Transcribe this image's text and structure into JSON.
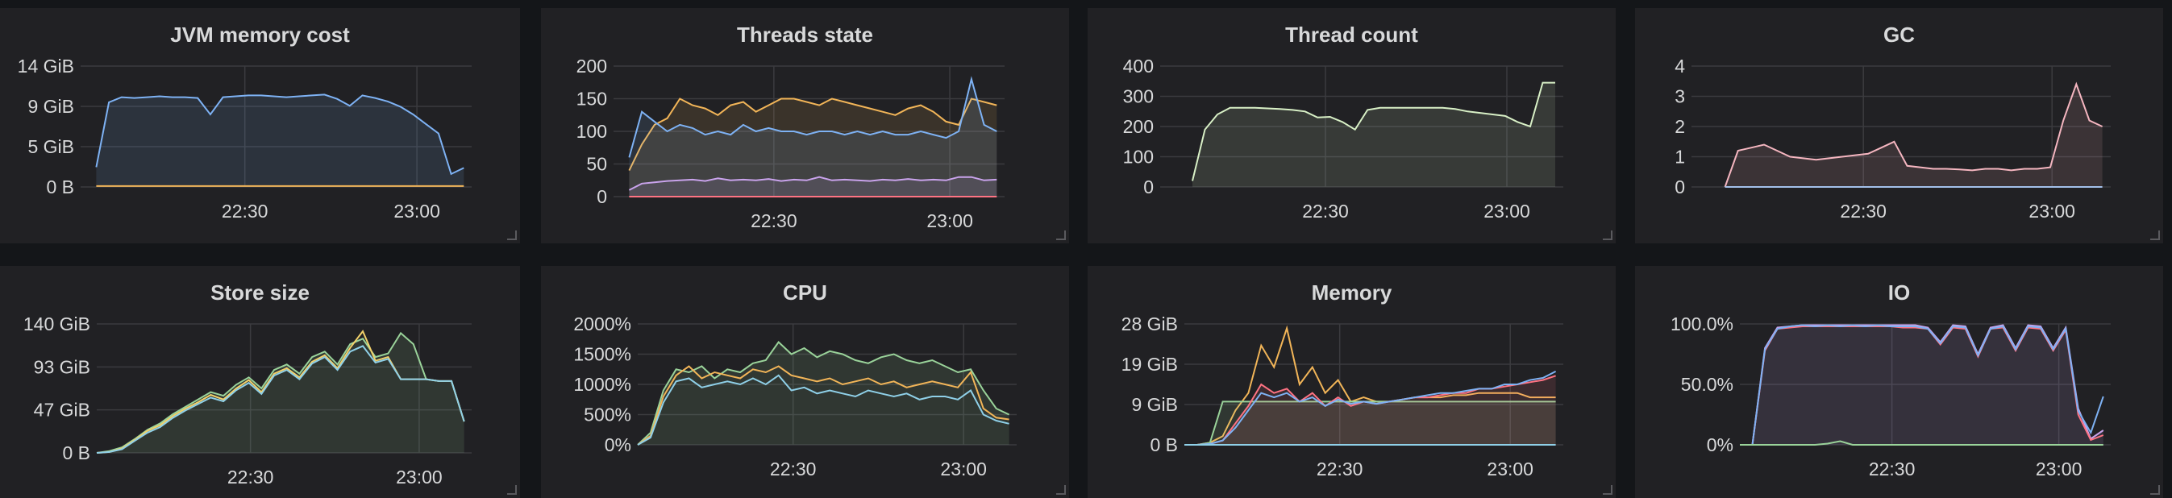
{
  "panels": [
    {
      "title": "JVM memory cost",
      "chart_data": {
        "type": "line",
        "y_ticks": [
          "14 GiB",
          "9 GiB",
          "5 GiB",
          "0 B"
        ],
        "x_ticks": [
          "22:30",
          "23:00"
        ],
        "series": [
          {
            "color": "#7eb2f4",
            "fill": "#7eb2f4",
            "values": [
              2.3,
              9.8,
              10.4,
              10.3,
              10.4,
              10.5,
              10.4,
              10.4,
              10.3,
              8.4,
              10.4,
              10.5,
              10.6,
              10.6,
              10.5,
              10.4,
              10.5,
              10.6,
              10.7,
              10.2,
              9.4,
              10.6,
              10.3,
              9.9,
              9.3,
              8.4,
              7.3,
              6.2,
              1.5,
              2.2
            ]
          },
          {
            "color": "#f2b558",
            "fill": null,
            "values": [
              0.1,
              0.1,
              0.1,
              0.1,
              0.1,
              0.1,
              0.1,
              0.1,
              0.1,
              0.1,
              0.1,
              0.1,
              0.1,
              0.1,
              0.1,
              0.1,
              0.1,
              0.1,
              0.1,
              0.1,
              0.1,
              0.1,
              0.1,
              0.1,
              0.1,
              0.1,
              0.1,
              0.1,
              0.1,
              0.1
            ]
          }
        ]
      }
    },
    {
      "title": "Threads state",
      "chart_data": {
        "type": "line",
        "y_ticks": [
          "200",
          "150",
          "100",
          "50",
          "0"
        ],
        "x_ticks": [
          "22:30",
          "23:00"
        ],
        "series": [
          {
            "color": "#f2b558",
            "fill": "#f2b558",
            "values": [
              40,
              80,
              110,
              120,
              150,
              140,
              135,
              125,
              140,
              145,
              130,
              140,
              150,
              150,
              145,
              140,
              150,
              145,
              140,
              135,
              130,
              125,
              135,
              140,
              130,
              115,
              110,
              150,
              145,
              140
            ]
          },
          {
            "color": "#7eb2f4",
            "fill": "#7eb2f4",
            "values": [
              60,
              130,
              115,
              100,
              110,
              105,
              95,
              100,
              95,
              110,
              100,
              105,
              100,
              100,
              95,
              100,
              100,
              95,
              100,
              95,
              100,
              95,
              95,
              100,
              95,
              90,
              100,
              180,
              110,
              100
            ]
          },
          {
            "color": "#c9a3ec",
            "fill": "#c9a3ec",
            "values": [
              10,
              20,
              22,
              24,
              25,
              26,
              24,
              28,
              25,
              26,
              25,
              27,
              24,
              26,
              25,
              30,
              25,
              26,
              25,
              24,
              26,
              25,
              27,
              25,
              26,
              25,
              30,
              30,
              25,
              26
            ]
          },
          {
            "color": "#ff7383",
            "fill": null,
            "values": [
              0,
              0,
              0,
              0,
              0,
              0,
              0,
              0,
              0,
              0,
              0,
              0,
              0,
              0,
              0,
              0,
              0,
              0,
              0,
              0,
              0,
              0,
              0,
              0,
              0,
              0,
              0,
              0,
              0,
              0
            ]
          }
        ]
      }
    },
    {
      "title": "Thread count",
      "chart_data": {
        "type": "line",
        "y_ticks": [
          "400",
          "300",
          "200",
          "100",
          "0"
        ],
        "x_ticks": [
          "22:30",
          "23:00"
        ],
        "series": [
          {
            "color": "#d8f0c6",
            "fill": "#d8f0c6",
            "values": [
              20,
              190,
              240,
              262,
              262,
              262,
              260,
              258,
              255,
              250,
              230,
              232,
              215,
              190,
              255,
              262,
              262,
              262,
              262,
              262,
              262,
              258,
              250,
              245,
              240,
              235,
              215,
              200,
              345,
              345
            ]
          }
        ]
      }
    },
    {
      "title": "GC",
      "chart_data": {
        "type": "line",
        "y_ticks": [
          "4",
          "3",
          "2",
          "1",
          "0"
        ],
        "x_ticks": [
          "22:30",
          "23:00"
        ],
        "series": [
          {
            "color": "#f5b6c0",
            "fill": "#f5b6c0",
            "values": [
              0,
              1.2,
              1.3,
              1.4,
              1.2,
              1.0,
              0.95,
              0.9,
              0.95,
              1.0,
              1.05,
              1.1,
              1.3,
              1.5,
              0.7,
              0.65,
              0.6,
              0.6,
              0.58,
              0.55,
              0.6,
              0.6,
              0.55,
              0.6,
              0.6,
              0.65,
              2.2,
              3.4,
              2.2,
              2.0
            ]
          },
          {
            "color": "#a3c0ea",
            "fill": null,
            "values": [
              0,
              0,
              0,
              0,
              0,
              0,
              0,
              0,
              0,
              0,
              0,
              0,
              0,
              0,
              0,
              0,
              0,
              0,
              0,
              0,
              0,
              0,
              0,
              0,
              0,
              0,
              0,
              0,
              0,
              0
            ]
          }
        ]
      }
    },
    {
      "title": "Store size",
      "chart_data": {
        "type": "line",
        "y_ticks": [
          "140 GiB",
          "93 GiB",
          "47 GiB",
          "0 B"
        ],
        "x_ticks": [
          "22:30",
          "23:00"
        ],
        "series": [
          {
            "color": "#9ad39a",
            "fill": "#9ad39a",
            "values": [
              0,
              2,
              6,
              15,
              25,
              32,
              42,
              50,
              58,
              66,
              62,
              74,
              82,
              70,
              90,
              96,
              86,
              104,
              110,
              96,
              118,
              124,
              104,
              108,
              130,
              118,
              80,
              78,
              78,
              34
            ]
          },
          {
            "color": "#f2d16b",
            "fill": null,
            "values": [
              0,
              1,
              5,
              14,
              24,
              30,
              40,
              48,
              55,
              63,
              58,
              70,
              79,
              66,
              86,
              92,
              82,
              99,
              106,
              92,
              114,
              132,
              100,
              104,
              80,
              80,
              80,
              78,
              78,
              34
            ]
          },
          {
            "color": "#8fd0e8",
            "fill": null,
            "values": [
              0,
              1,
              4,
              13,
              22,
              28,
              38,
              46,
              53,
              60,
              56,
              68,
              76,
              64,
              84,
              90,
              80,
              97,
              104,
              90,
              110,
              116,
              98,
              102,
              80,
              80,
              80,
              78,
              78,
              34
            ]
          }
        ]
      }
    },
    {
      "title": "CPU",
      "chart_data": {
        "type": "line",
        "y_ticks": [
          "2000%",
          "1500%",
          "1000%",
          "500%",
          "0%"
        ],
        "x_ticks": [
          "22:30",
          "23:00"
        ],
        "series": [
          {
            "color": "#9ad39a",
            "fill": "#9ad39a",
            "values": [
              0,
              200,
              900,
              1250,
              1200,
              1300,
              1100,
              1250,
              1200,
              1350,
              1400,
              1700,
              1500,
              1600,
              1450,
              1550,
              1500,
              1400,
              1350,
              1450,
              1500,
              1400,
              1350,
              1400,
              1300,
              1200,
              1250,
              900,
              600,
              500
            ]
          },
          {
            "color": "#f2b558",
            "fill": null,
            "values": [
              0,
              150,
              800,
              1150,
              1300,
              1100,
              1200,
              1150,
              1100,
              1250,
              1200,
              1300,
              1150,
              1100,
              1050,
              1100,
              1000,
              1050,
              1100,
              1000,
              1050,
              950,
              1000,
              1050,
              1000,
              950,
              1200,
              600,
              450,
              420
            ]
          },
          {
            "color": "#8fd0e8",
            "fill": null,
            "values": [
              0,
              120,
              700,
              1050,
              1100,
              950,
              1000,
              1050,
              1000,
              1100,
              1000,
              1150,
              900,
              950,
              850,
              900,
              850,
              800,
              900,
              850,
              800,
              850,
              750,
              800,
              800,
              750,
              900,
              500,
              400,
              350
            ]
          }
        ]
      }
    },
    {
      "title": "Memory",
      "chart_data": {
        "type": "line",
        "y_ticks": [
          "28 GiB",
          "19 GiB",
          "9 GiB",
          "0 B"
        ],
        "x_ticks": [
          "22:30",
          "23:00"
        ],
        "series": [
          {
            "color": "#f2b558",
            "fill": null,
            "values": [
              0,
              0,
              0.5,
              2,
              8,
              12,
              23,
              18,
              27,
              14,
              18,
              12,
              15,
              10,
              11,
              10,
              10,
              10.5,
              11,
              11,
              11,
              11.5,
              11.5,
              12,
              12,
              12,
              12,
              11,
              11,
              11
            ]
          },
          {
            "color": "#9ad39a",
            "fill": "#9ad39a",
            "values": [
              0,
              0,
              0.5,
              10,
              10,
              10,
              10,
              10,
              10,
              10,
              10,
              10,
              10,
              10,
              10,
              10,
              10,
              10,
              10,
              10,
              10,
              10,
              10,
              10,
              10,
              10,
              10,
              10,
              10,
              10
            ]
          },
          {
            "color": "#ff7383",
            "fill": "#ff7383",
            "values": [
              0,
              0,
              0.2,
              1,
              5,
              9,
              14,
              12,
              13,
              10,
              12,
              9,
              11,
              9,
              10,
              9.5,
              10,
              10.5,
              11,
              11,
              11.5,
              12,
              12,
              13,
              13,
              13.5,
              14,
              14.5,
              15,
              16
            ]
          },
          {
            "color": "#7eb2f4",
            "fill": null,
            "values": [
              0,
              0,
              0.2,
              1,
              4,
              8,
              12,
              11,
              12,
              10,
              11,
              9,
              10.5,
              9.5,
              10,
              9.5,
              10,
              10.5,
              11,
              11.5,
              12,
              12,
              12.5,
              13,
              13,
              14,
              14,
              15,
              15.5,
              17
            ]
          },
          {
            "color": "#8fd0e8",
            "fill": null,
            "values": [
              0,
              0,
              0,
              0,
              0,
              0,
              0,
              0,
              0,
              0,
              0,
              0,
              0,
              0,
              0,
              0,
              0,
              0,
              0,
              0,
              0,
              0,
              0,
              0,
              0,
              0,
              0,
              0,
              0,
              0
            ]
          }
        ]
      }
    },
    {
      "title": "IO",
      "chart_data": {
        "type": "line",
        "y_ticks": [
          "100.0%",
          "50.0%",
          "0%"
        ],
        "x_ticks": [
          "22:30",
          "23:00"
        ],
        "series": [
          {
            "color": "#c9a3ec",
            "fill": "#c9a3ec",
            "values": [
              0,
              0,
              80,
              97,
              98,
              99,
              99,
              99,
              99,
              99,
              99,
              99,
              99,
              99,
              99,
              97,
              85,
              99,
              98,
              75,
              97,
              99,
              80,
              99,
              98,
              80,
              97,
              30,
              5,
              12
            ]
          },
          {
            "color": "#ff7383",
            "fill": null,
            "values": [
              0,
              0,
              78,
              96,
              97,
              98,
              98,
              98,
              98,
              98,
              98,
              98,
              98,
              97,
              97,
              96,
              83,
              97,
              96,
              73,
              96,
              97,
              78,
              97,
              96,
              78,
              95,
              25,
              4,
              8
            ]
          },
          {
            "color": "#7eb2f4",
            "fill": null,
            "values": [
              0,
              0,
              79,
              96,
              98,
              99,
              98,
              99,
              98,
              99,
              98,
              99,
              98,
              98,
              98,
              96,
              84,
              98,
              97,
              74,
              96,
              98,
              79,
              98,
              97,
              79,
              96,
              28,
              10,
              40
            ]
          },
          {
            "color": "#9ad39a",
            "fill": null,
            "values": [
              0,
              0,
              0,
              0,
              0,
              0,
              0,
              1,
              3,
              0,
              0,
              0,
              0,
              0,
              0,
              0,
              0,
              0,
              0,
              0,
              0,
              0,
              0,
              0,
              0,
              0,
              0,
              0,
              0,
              0
            ]
          }
        ]
      }
    }
  ]
}
